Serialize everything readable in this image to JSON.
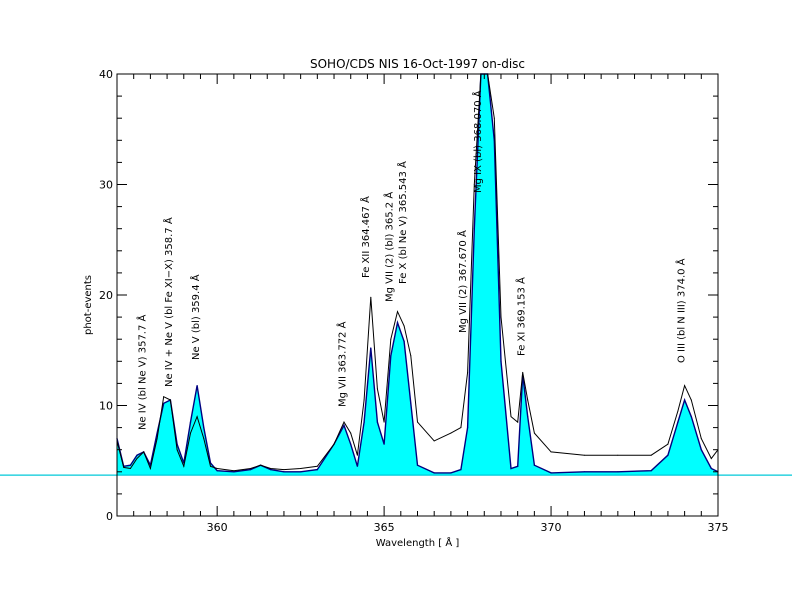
{
  "chart_data": {
    "type": "line",
    "title": "SOHO/CDS NIS  16-Oct-1997 on-disc",
    "xlabel": "Wavelength [ Å ]",
    "ylabel": "phot-events",
    "xlim": [
      357.0,
      375.0
    ],
    "ylim": [
      0,
      40
    ],
    "x_ticks": [
      360,
      365,
      370,
      375
    ],
    "x_tick_labels": [
      "360",
      "365",
      "370",
      "375"
    ],
    "y_ticks": [
      0,
      10,
      20,
      30,
      40
    ],
    "y_tick_labels": [
      "0",
      "10",
      "20",
      "30",
      "40"
    ],
    "baseline": 3.7,
    "fill_color": "#00ffff",
    "baseline_color": "#00c8d8",
    "grid": false,
    "series": [
      {
        "name": "",
        "style": "filled",
        "x": [
          357.0,
          357.2,
          357.4,
          357.6,
          357.8,
          358.0,
          358.2,
          358.4,
          358.6,
          358.8,
          359.0,
          359.2,
          359.4,
          359.6,
          359.8,
          360.0,
          360.5,
          361.0,
          361.3,
          361.6,
          362.0,
          362.5,
          363.0,
          363.5,
          363.8,
          364.0,
          364.2,
          364.4,
          364.6,
          364.8,
          365.0,
          365.2,
          365.4,
          365.6,
          365.8,
          366.0,
          366.5,
          367.0,
          367.3,
          367.5,
          367.7,
          367.9,
          368.0,
          368.1,
          368.3,
          368.5,
          368.8,
          369.0,
          369.15,
          369.3,
          369.5,
          370.0,
          371.0,
          372.0,
          373.0,
          373.5,
          373.8,
          374.0,
          374.2,
          374.5,
          374.8,
          375.0
        ],
        "y": [
          7.0,
          4.5,
          4.6,
          5.5,
          5.8,
          4.6,
          7.5,
          10.2,
          10.5,
          6.5,
          4.8,
          8.5,
          11.8,
          8.0,
          4.8,
          4.1,
          4.0,
          4.2,
          4.6,
          4.2,
          4.0,
          4.0,
          4.2,
          6.5,
          8.2,
          6.5,
          4.5,
          8.5,
          15.2,
          8.5,
          6.5,
          14.5,
          17.5,
          15.8,
          10.2,
          4.6,
          3.9,
          3.9,
          4.2,
          8.0,
          26.0,
          40.0,
          40.0,
          40.0,
          34.0,
          14.0,
          4.3,
          4.5,
          12.8,
          9.0,
          4.6,
          3.9,
          4.0,
          4.0,
          4.1,
          5.5,
          8.5,
          10.5,
          9.0,
          6.0,
          4.3,
          4.0
        ]
      },
      {
        "name": "",
        "style": "outline",
        "x": [
          357.0,
          357.2,
          357.4,
          357.6,
          357.8,
          358.0,
          358.2,
          358.4,
          358.6,
          358.8,
          359.0,
          359.2,
          359.4,
          359.6,
          359.8,
          360.0,
          360.5,
          361.0,
          361.3,
          361.6,
          362.0,
          362.5,
          363.0,
          363.5,
          363.8,
          364.0,
          364.2,
          364.4,
          364.6,
          364.8,
          365.0,
          365.2,
          365.4,
          365.6,
          365.8,
          366.0,
          366.5,
          367.0,
          367.3,
          367.5,
          367.7,
          367.9,
          368.0,
          368.1,
          368.3,
          368.5,
          368.8,
          369.0,
          369.15,
          369.3,
          369.5,
          370.0,
          371.0,
          372.0,
          373.0,
          373.5,
          373.8,
          374.0,
          374.2,
          374.5,
          374.8,
          375.0
        ],
        "y": [
          6.8,
          4.4,
          4.3,
          5.2,
          5.8,
          4.3,
          7.0,
          10.8,
          10.5,
          6.0,
          4.5,
          7.5,
          9.0,
          7.0,
          4.5,
          4.3,
          4.1,
          4.3,
          4.6,
          4.3,
          4.2,
          4.3,
          4.5,
          6.5,
          8.5,
          7.5,
          5.5,
          10.5,
          19.8,
          11.5,
          8.5,
          16.0,
          18.5,
          17.2,
          14.5,
          8.5,
          6.8,
          7.5,
          8.0,
          13.0,
          30.0,
          40.0,
          40.0,
          40.0,
          36.0,
          18.0,
          9.0,
          8.5,
          13.0,
          10.5,
          7.5,
          5.8,
          5.5,
          5.5,
          5.5,
          6.5,
          9.5,
          11.8,
          10.5,
          7.0,
          5.2,
          6.0
        ]
      }
    ],
    "annotations": [
      {
        "x": 357.85,
        "y_top": 41,
        "text": "Ne IV (bl Ne V) 357.7 Å"
      },
      {
        "x": 358.65,
        "y_top": 41,
        "text": "Ne IV + Ne V (bl Fe XI−X) 358.7 Å"
      },
      {
        "x": 359.45,
        "y_top": 41,
        "text": "Ne V (bl) 359.4 Å"
      },
      {
        "x": 363.85,
        "y_top": 41,
        "text": "Mg VII 363.772 Å"
      },
      {
        "x": 364.55,
        "y_top": 41,
        "text": "Fe XII 364.467 Å"
      },
      {
        "x": 365.25,
        "y_top": 41,
        "text": "Mg VII (2) (bl) 365.2 Å"
      },
      {
        "x": 365.65,
        "y_top": 41,
        "text": "Fe X (bl Ne V) 365.543 Å"
      },
      {
        "x": 367.45,
        "y_top": 41,
        "text": "Mg VII (2) 367.670 Å"
      },
      {
        "x": 367.9,
        "y_top": 41,
        "text": "Mg IX (bl) 368.070 Å"
      },
      {
        "x": 369.2,
        "y_top": 41,
        "text": "Fe XI 369.153 Å"
      },
      {
        "x": 374.0,
        "y_top": 41,
        "text": "O III (bl N III) 374.0 Å"
      }
    ]
  }
}
